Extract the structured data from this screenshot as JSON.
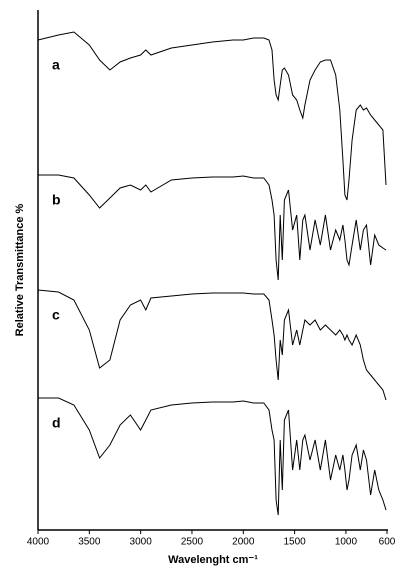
{
  "chart_data": {
    "type": "line",
    "x_label": "Wavelenght cm⁻¹",
    "y_label": "Relative Transmittance %",
    "xlim": [
      4000,
      600
    ],
    "xticks": [
      4000,
      3500,
      3000,
      2500,
      2000,
      1500,
      1000,
      600
    ],
    "ylim": [
      0,
      104
    ],
    "x": [
      4000,
      3800,
      3650,
      3500,
      3400,
      3300,
      3200,
      3100,
      3000,
      2950,
      2900,
      2700,
      2500,
      2300,
      2100,
      2000,
      1900,
      1800,
      1750,
      1720,
      1700,
      1680,
      1660,
      1640,
      1620,
      1600,
      1560,
      1520,
      1480,
      1450,
      1420,
      1400,
      1350,
      1300,
      1250,
      1200,
      1150,
      1100,
      1060,
      1030,
      1010,
      990,
      970,
      940,
      900,
      860,
      830,
      800,
      760,
      720,
      680,
      640,
      610
    ],
    "series": [
      {
        "name": "a",
        "color": "#000000",
        "values": [
          98,
          99,
          99.6,
          97,
          94,
          92,
          93.6,
          94.4,
          95,
          96,
          95,
          96.4,
          97,
          97.6,
          98,
          98,
          98.4,
          98.4,
          98,
          96,
          90,
          87,
          86,
          89,
          92,
          92.4,
          91,
          87,
          86,
          84,
          82.4,
          85,
          90,
          92,
          93.6,
          94,
          94,
          91,
          84,
          74,
          67,
          66,
          70,
          78,
          84,
          85,
          84,
          84.4,
          83,
          82,
          81,
          80,
          69
        ]
      },
      {
        "name": "b",
        "color": "#000000",
        "values": [
          71,
          71,
          70.4,
          67,
          64.4,
          66.4,
          68.4,
          69,
          68,
          69,
          67.6,
          70,
          70.4,
          70.6,
          70.6,
          70.8,
          70.4,
          70.4,
          69,
          66,
          63,
          54,
          50,
          63,
          54,
          66,
          68,
          60,
          63,
          54,
          62,
          63,
          56,
          62,
          57,
          63,
          56,
          60,
          58,
          61,
          58,
          54,
          53,
          57,
          62,
          56,
          60,
          61,
          53,
          59,
          57,
          56.4,
          56
        ]
      },
      {
        "name": "c",
        "color": "#000000",
        "values": [
          48,
          47.6,
          46,
          40,
          32.4,
          34,
          42,
          45,
          46,
          44,
          46.4,
          46.8,
          47.2,
          47.4,
          47.4,
          47.4,
          47.2,
          47.2,
          46,
          42,
          39,
          34,
          30,
          38,
          35,
          42,
          44,
          37,
          40,
          37,
          40,
          42,
          41,
          42,
          40,
          41,
          40,
          39,
          40,
          39,
          38,
          39,
          38,
          37,
          39,
          37,
          34,
          32,
          31,
          30,
          29,
          28,
          26
        ]
      },
      {
        "name": "d",
        "color": "#000000",
        "values": [
          26.4,
          26.4,
          25,
          20,
          14.4,
          17,
          21,
          23,
          20,
          22,
          24,
          25,
          25.4,
          25.6,
          25.6,
          25.8,
          25.4,
          25.4,
          24,
          20,
          18,
          6,
          3,
          18,
          8,
          22,
          24,
          12,
          18,
          12,
          18,
          19,
          14,
          18,
          12,
          18,
          10,
          15,
          12,
          15,
          12,
          8,
          10,
          15,
          17,
          12,
          16,
          14,
          7,
          12,
          8,
          6,
          4
        ]
      }
    ]
  }
}
